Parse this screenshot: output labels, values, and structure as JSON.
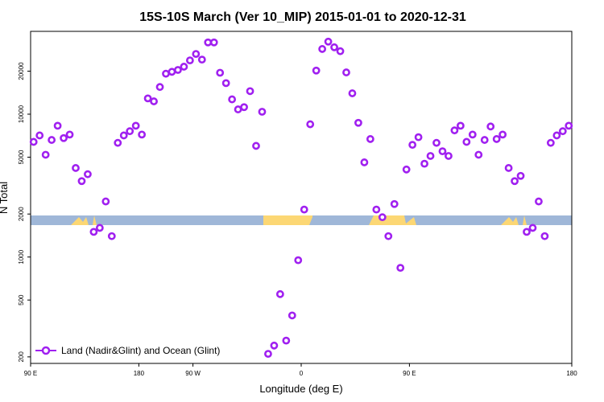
{
  "chart_data": {
    "type": "scatter",
    "title": "15S-10S March (Ver 10_MIP)   2015-01-01 to 2020-12-31",
    "xlabel": "Longitude (deg E)",
    "ylabel": "N Total",
    "xlim": [
      -180,
      180
    ],
    "ylim": [
      180,
      38000
    ],
    "yscale": "log",
    "x_ticks": [
      {
        "value": -180,
        "label": "90 E"
      },
      {
        "value": -108,
        "label": "180"
      },
      {
        "value": -72,
        "label": "90 W"
      },
      {
        "value": 0,
        "label": "0"
      },
      {
        "value": 72,
        "label": "90 E"
      },
      {
        "value": 180,
        "label": "180"
      }
    ],
    "y_ticks": [
      {
        "value": 200,
        "label": "200"
      },
      {
        "value": 500,
        "label": "500"
      },
      {
        "value": 1000,
        "label": "1000"
      },
      {
        "value": 2000,
        "label": "2000"
      },
      {
        "value": 5000,
        "label": "5000"
      },
      {
        "value": 10000,
        "label": "10000"
      },
      {
        "value": 20000,
        "label": "20000"
      }
    ],
    "legend_position": "bottom-left",
    "colors": {
      "marker": "#a020f0",
      "land_strip": "#9fb7d8",
      "land_fill": "#fcd774"
    },
    "series": [
      {
        "name": "Land (Nadir&Glint) and Ocean (Glint)",
        "points": [
          {
            "x": -178,
            "y": 6400
          },
          {
            "x": -174,
            "y": 7100
          },
          {
            "x": -170,
            "y": 5200
          },
          {
            "x": -166,
            "y": 6600
          },
          {
            "x": -162,
            "y": 8300
          },
          {
            "x": -158,
            "y": 6800
          },
          {
            "x": -154,
            "y": 7200
          },
          {
            "x": -150,
            "y": 4200
          },
          {
            "x": -146,
            "y": 3400
          },
          {
            "x": -142,
            "y": 3800
          },
          {
            "x": -138,
            "y": 1500
          },
          {
            "x": -134,
            "y": 1600
          },
          {
            "x": -130,
            "y": 2450
          },
          {
            "x": -126,
            "y": 1400
          },
          {
            "x": -122,
            "y": 6300
          },
          {
            "x": -118,
            "y": 7100
          },
          {
            "x": -114,
            "y": 7600
          },
          {
            "x": -110,
            "y": 8300
          },
          {
            "x": -106,
            "y": 7200
          },
          {
            "x": -102,
            "y": 12900
          },
          {
            "x": -98,
            "y": 12300
          },
          {
            "x": -94,
            "y": 15500
          },
          {
            "x": -90,
            "y": 19200
          },
          {
            "x": -86,
            "y": 19800
          },
          {
            "x": -82,
            "y": 20400
          },
          {
            "x": -78,
            "y": 21500
          },
          {
            "x": -74,
            "y": 23800
          },
          {
            "x": -70,
            "y": 26400
          },
          {
            "x": -66,
            "y": 24100
          },
          {
            "x": -62,
            "y": 31800
          },
          {
            "x": -58,
            "y": 31800
          },
          {
            "x": -54,
            "y": 19500
          },
          {
            "x": -50,
            "y": 16500
          },
          {
            "x": -46,
            "y": 12700
          },
          {
            "x": -42,
            "y": 10800
          },
          {
            "x": -38,
            "y": 11200
          },
          {
            "x": -34,
            "y": 14500
          },
          {
            "x": -30,
            "y": 6000
          },
          {
            "x": -26,
            "y": 10400
          },
          {
            "x": -22,
            "y": 210
          },
          {
            "x": -18,
            "y": 240
          },
          {
            "x": -14,
            "y": 550
          },
          {
            "x": -10,
            "y": 260
          },
          {
            "x": -6,
            "y": 390
          },
          {
            "x": -2,
            "y": 950
          },
          {
            "x": 2,
            "y": 2150
          },
          {
            "x": 6,
            "y": 8500
          },
          {
            "x": 10,
            "y": 20200
          },
          {
            "x": 14,
            "y": 28600
          },
          {
            "x": 18,
            "y": 32200
          },
          {
            "x": 22,
            "y": 29400
          },
          {
            "x": 26,
            "y": 27600
          },
          {
            "x": 30,
            "y": 19600
          },
          {
            "x": 34,
            "y": 14000
          },
          {
            "x": 38,
            "y": 8700
          },
          {
            "x": 42,
            "y": 4600
          },
          {
            "x": 46,
            "y": 6700
          },
          {
            "x": 50,
            "y": 2150
          },
          {
            "x": 54,
            "y": 1900
          },
          {
            "x": 58,
            "y": 1400
          },
          {
            "x": 62,
            "y": 2350
          },
          {
            "x": 66,
            "y": 840
          },
          {
            "x": 70,
            "y": 4100
          },
          {
            "x": 74,
            "y": 6100
          },
          {
            "x": 78,
            "y": 6900
          },
          {
            "x": 82,
            "y": 4500
          },
          {
            "x": 86,
            "y": 5100
          },
          {
            "x": 90,
            "y": 6300
          },
          {
            "x": 94,
            "y": 5500
          },
          {
            "x": 98,
            "y": 5100
          },
          {
            "x": 102,
            "y": 7700
          },
          {
            "x": 106,
            "y": 8300
          },
          {
            "x": 110,
            "y": 6400
          },
          {
            "x": 114,
            "y": 7200
          },
          {
            "x": 118,
            "y": 5200
          },
          {
            "x": 122,
            "y": 6600
          },
          {
            "x": 126,
            "y": 8200
          },
          {
            "x": 130,
            "y": 6700
          },
          {
            "x": 134,
            "y": 7200
          },
          {
            "x": 138,
            "y": 4200
          },
          {
            "x": 142,
            "y": 3400
          },
          {
            "x": 146,
            "y": 3700
          },
          {
            "x": 150,
            "y": 1500
          },
          {
            "x": 154,
            "y": 1600
          },
          {
            "x": 158,
            "y": 2450
          },
          {
            "x": 162,
            "y": 1400
          },
          {
            "x": 166,
            "y": 6300
          },
          {
            "x": 170,
            "y": 7100
          },
          {
            "x": 174,
            "y": 7600
          },
          {
            "x": 178,
            "y": 8300
          }
        ]
      }
    ]
  }
}
